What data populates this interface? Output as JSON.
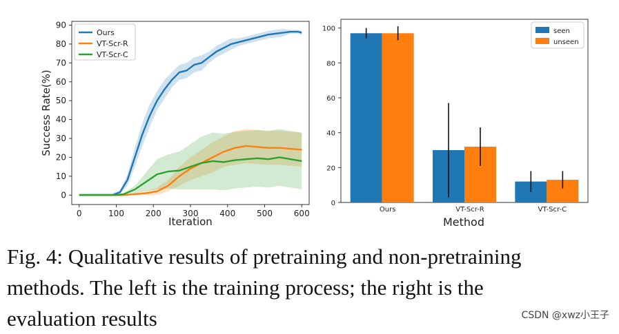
{
  "chart_data": [
    {
      "type": "line",
      "xlabel": "Iteration",
      "ylabel": "Success Rate(%)",
      "xlim": [
        -20,
        620
      ],
      "ylim": [
        -5,
        92
      ],
      "xticks": [
        0,
        100,
        200,
        300,
        400,
        500,
        600
      ],
      "yticks": [
        0,
        10,
        20,
        30,
        40,
        50,
        60,
        70,
        80,
        90
      ],
      "legend_position": "top-left",
      "series": [
        {
          "name": "Ours",
          "color": "#1f77b4",
          "x": [
            0,
            90,
            110,
            130,
            150,
            170,
            190,
            210,
            230,
            250,
            270,
            290,
            310,
            330,
            350,
            370,
            390,
            410,
            430,
            450,
            470,
            490,
            510,
            530,
            550,
            570,
            590,
            600
          ],
          "y": [
            0,
            0,
            1.5,
            8,
            20,
            32,
            42,
            50,
            56,
            61,
            65,
            66,
            69,
            70,
            73,
            76,
            78,
            80,
            81,
            82,
            83,
            84,
            85,
            85.5,
            86,
            86.5,
            86.5,
            86
          ],
          "band": [
            1,
            1,
            1,
            3,
            5,
            6,
            6,
            5,
            5,
            4,
            4,
            4,
            4,
            4,
            3,
            3,
            3,
            3,
            2,
            2,
            2,
            2,
            2,
            2,
            2,
            1,
            1,
            1
          ]
        },
        {
          "name": "VT-Scr-R",
          "color": "#ff7f0e",
          "x": [
            0,
            100,
            120,
            150,
            180,
            210,
            240,
            270,
            300,
            330,
            360,
            390,
            420,
            450,
            480,
            510,
            540,
            570,
            600
          ],
          "y": [
            0,
            0,
            0,
            0.5,
            1,
            2,
            5,
            10,
            14,
            17,
            20,
            23,
            25,
            26,
            25.5,
            25,
            25,
            24.5,
            24
          ],
          "band": [
            0,
            0,
            0,
            0.5,
            1,
            2,
            3,
            5,
            6,
            7,
            8,
            8,
            9,
            9,
            9,
            9,
            9,
            9,
            9
          ]
        },
        {
          "name": "VT-Scr-C",
          "color": "#2ca02c",
          "x": [
            0,
            100,
            120,
            150,
            180,
            210,
            240,
            270,
            300,
            330,
            360,
            390,
            420,
            450,
            480,
            510,
            540,
            570,
            600
          ],
          "y": [
            0,
            0,
            0.5,
            3,
            7,
            11,
            12.5,
            13,
            15,
            17,
            18,
            17.5,
            18.5,
            19,
            19.5,
            19,
            20,
            19,
            18
          ],
          "band": [
            0,
            0,
            0.5,
            2,
            5,
            8,
            9,
            10,
            12,
            14,
            15,
            15,
            15,
            15,
            15,
            15,
            15,
            15,
            15
          ]
        }
      ]
    },
    {
      "type": "bar",
      "xlabel": "Method",
      "ylabel": "",
      "ylim": [
        0,
        105
      ],
      "yticks": [
        0,
        20,
        40,
        60,
        80,
        100
      ],
      "categories": [
        "Ours",
        "VT-Scr-R",
        "VT-Scr-C"
      ],
      "legend_position": "top-right",
      "series": [
        {
          "name": "seen",
          "color": "#1f77b4",
          "values": [
            97,
            30,
            12
          ],
          "err_low": [
            94,
            3,
            6
          ],
          "err_high": [
            100,
            57,
            18
          ]
        },
        {
          "name": "unseen",
          "color": "#ff7f0e",
          "values": [
            97,
            32,
            13
          ],
          "err_low": [
            93,
            21,
            8
          ],
          "err_high": [
            101,
            43,
            18
          ]
        }
      ]
    }
  ],
  "caption": {
    "line1": "Fig. 4: Qualitative results of pretraining and non-pretraining",
    "line2": "methods. The left is the training process; the right is the",
    "line3": "evaluation results"
  },
  "watermark": "CSDN @xwz小王子"
}
